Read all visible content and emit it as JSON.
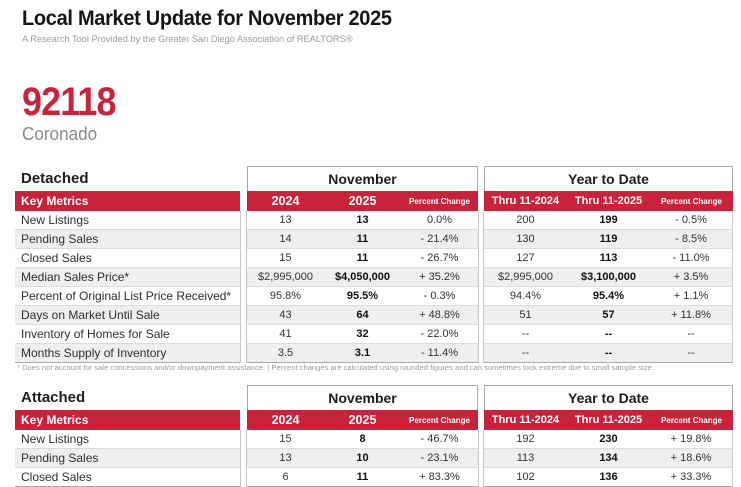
{
  "header": {
    "title": "Local Market Update for November 2025",
    "subtitle": "A Research Tool Provided by the Greater San Diego Association of REALTORS®"
  },
  "location": {
    "zip": "92118",
    "name": "Coronado"
  },
  "colors": {
    "brand_red": "#C8233B",
    "stripe_gray": "#EFEFEF"
  },
  "column_headers": {
    "key_metrics": "Key Metrics",
    "month_group": "November",
    "ytd_group": "Year to Date",
    "month_cols": [
      "2024",
      "2025",
      "Percent Change"
    ],
    "ytd_cols": [
      "Thru 11-2024",
      "Thru 11-2025",
      "Percent Change"
    ]
  },
  "tables": [
    {
      "section": "Detached",
      "rows": [
        {
          "metric": "New Listings",
          "values": [
            "13",
            "13",
            "0.0%",
            "200",
            "199",
            "- 0.5%"
          ]
        },
        {
          "metric": "Pending Sales",
          "values": [
            "14",
            "11",
            "- 21.4%",
            "130",
            "119",
            "- 8.5%"
          ]
        },
        {
          "metric": "Closed Sales",
          "values": [
            "15",
            "11",
            "- 26.7%",
            "127",
            "113",
            "- 11.0%"
          ]
        },
        {
          "metric": "Median Sales Price*",
          "values": [
            "$2,995,000",
            "$4,050,000",
            "+ 35.2%",
            "$2,995,000",
            "$3,100,000",
            "+ 3.5%"
          ]
        },
        {
          "metric": "Percent of Original List Price Received*",
          "values": [
            "95.8%",
            "95.5%",
            "- 0.3%",
            "94.4%",
            "95.4%",
            "+ 1.1%"
          ]
        },
        {
          "metric": "Days on Market Until Sale",
          "values": [
            "43",
            "64",
            "+ 48.8%",
            "51",
            "57",
            "+ 11.8%"
          ]
        },
        {
          "metric": "Inventory of Homes for Sale",
          "values": [
            "41",
            "32",
            "- 22.0%",
            "--",
            "--",
            "--"
          ]
        },
        {
          "metric": "Months Supply of Inventory",
          "values": [
            "3.5",
            "3.1",
            "- 11.4%",
            "--",
            "--",
            "--"
          ]
        }
      ]
    },
    {
      "section": "Attached",
      "rows": [
        {
          "metric": "New Listings",
          "values": [
            "15",
            "8",
            "- 46.7%",
            "192",
            "230",
            "+ 19.8%"
          ]
        },
        {
          "metric": "Pending Sales",
          "values": [
            "13",
            "10",
            "- 23.1%",
            "113",
            "134",
            "+ 18.6%"
          ]
        },
        {
          "metric": "Closed Sales",
          "values": [
            "6",
            "11",
            "+ 83.3%",
            "102",
            "136",
            "+ 33.3%"
          ]
        }
      ]
    }
  ],
  "footnote": "* Does not account for sale concessions and/or downpayment assistance.  |  Percent changes are calculated using rounded figures and can sometimes look extreme due to small sample size."
}
